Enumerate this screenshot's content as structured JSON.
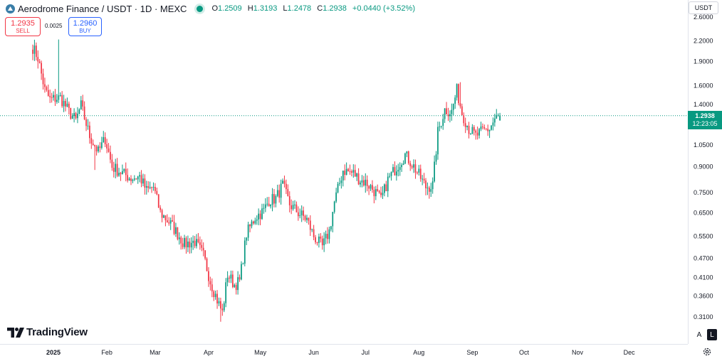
{
  "symbol": {
    "title": "Aerodrome Finance / USDT · 1D · MEXC",
    "ohlc": [
      {
        "key": "O",
        "value": "1.2509"
      },
      {
        "key": "H",
        "value": "1.3193"
      },
      {
        "key": "L",
        "value": "1.2478"
      },
      {
        "key": "C",
        "value": "1.2938"
      }
    ],
    "change": "+0.0440 (+3.52%)"
  },
  "trade": {
    "sell_price": "1.2935",
    "sell_label": "SELL",
    "buy_price": "1.2960",
    "buy_label": "BUY",
    "spread": "0.0025"
  },
  "currency": "USDT",
  "last_price": {
    "price": "1.2938",
    "countdown": "12:23:05",
    "value": 1.2938
  },
  "brand": "TradingView",
  "scale_buttons": {
    "auto": "A",
    "log": "L"
  },
  "colors": {
    "up": "#089981",
    "down": "#f23645",
    "buy": "#2962ff",
    "logo": "#3a7ea8",
    "text": "#131722",
    "axis_text": "#131722"
  },
  "chart_data": {
    "type": "candlestick",
    "title": "Aerodrome Finance / USDT · 1D · MEXC",
    "scale": "log",
    "y_ticks": [
      "2.6000",
      "2.2000",
      "1.9000",
      "1.6000",
      "1.4000",
      "1.0500",
      "0.9000",
      "0.7500",
      "0.6500",
      "0.5500",
      "0.4700",
      "0.4100",
      "0.3600",
      "0.3100"
    ],
    "ylim": [
      0.275,
      2.85
    ],
    "x_ticks": [
      {
        "label": "2025",
        "date": "2025-01-01",
        "bold": true
      },
      {
        "label": "Feb",
        "date": "2025-02-01"
      },
      {
        "label": "Mar",
        "date": "2025-03-01"
      },
      {
        "label": "Apr",
        "date": "2025-04-01"
      },
      {
        "label": "May",
        "date": "2025-05-01"
      },
      {
        "label": "Jun",
        "date": "2025-06-01"
      },
      {
        "label": "Jul",
        "date": "2025-07-01"
      },
      {
        "label": "Aug",
        "date": "2025-08-01"
      },
      {
        "label": "Sep",
        "date": "2025-09-01"
      },
      {
        "label": "Oct",
        "date": "2025-10-01"
      },
      {
        "label": "Nov",
        "date": "2025-11-01"
      },
      {
        "label": "Dec",
        "date": "2025-12-01"
      }
    ],
    "x_range": [
      "2024-12-01",
      "2026-01-04"
    ],
    "series_start": "2024-12-20",
    "close_anchors": [
      [
        "2024-12-20",
        2.1
      ],
      [
        "2024-12-23",
        1.95
      ],
      [
        "2024-12-27",
        1.55
      ],
      [
        "2024-12-30",
        1.45
      ],
      [
        "2025-01-05",
        1.47
      ],
      [
        "2025-01-10",
        1.33
      ],
      [
        "2025-01-14",
        1.25
      ],
      [
        "2025-01-17",
        1.39
      ],
      [
        "2025-01-22",
        1.12
      ],
      [
        "2025-01-27",
        1.0
      ],
      [
        "2025-01-31",
        1.1
      ],
      [
        "2025-02-04",
        0.9
      ],
      [
        "2025-02-10",
        0.86
      ],
      [
        "2025-02-15",
        0.83
      ],
      [
        "2025-02-20",
        0.84
      ],
      [
        "2025-02-24",
        0.76
      ],
      [
        "2025-02-28",
        0.78
      ],
      [
        "2025-03-04",
        0.65
      ],
      [
        "2025-03-10",
        0.6
      ],
      [
        "2025-03-14",
        0.56
      ],
      [
        "2025-03-18",
        0.52
      ],
      [
        "2025-03-24",
        0.53
      ],
      [
        "2025-03-29",
        0.48
      ],
      [
        "2025-04-02",
        0.4
      ],
      [
        "2025-04-06",
        0.35
      ],
      [
        "2025-04-09",
        0.32
      ],
      [
        "2025-04-12",
        0.42
      ],
      [
        "2025-04-16",
        0.39
      ],
      [
        "2025-04-19",
        0.4
      ],
      [
        "2025-04-23",
        0.56
      ],
      [
        "2025-04-28",
        0.63
      ],
      [
        "2025-05-03",
        0.66
      ],
      [
        "2025-05-06",
        0.71
      ],
      [
        "2025-05-10",
        0.72
      ],
      [
        "2025-05-14",
        0.79
      ],
      [
        "2025-05-18",
        0.69
      ],
      [
        "2025-05-23",
        0.65
      ],
      [
        "2025-05-28",
        0.62
      ],
      [
        "2025-06-01",
        0.55
      ],
      [
        "2025-06-06",
        0.51
      ],
      [
        "2025-06-10",
        0.57
      ],
      [
        "2025-06-13",
        0.7
      ],
      [
        "2025-06-18",
        0.88
      ],
      [
        "2025-06-24",
        0.86
      ],
      [
        "2025-06-28",
        0.82
      ],
      [
        "2025-07-02",
        0.8
      ],
      [
        "2025-07-07",
        0.75
      ],
      [
        "2025-07-10",
        0.71
      ],
      [
        "2025-07-14",
        0.82
      ],
      [
        "2025-07-19",
        0.9
      ],
      [
        "2025-07-24",
        0.98
      ],
      [
        "2025-07-28",
        0.92
      ],
      [
        "2025-08-01",
        0.85
      ],
      [
        "2025-08-05",
        0.78
      ],
      [
        "2025-08-09",
        0.79
      ],
      [
        "2025-08-12",
        1.15
      ],
      [
        "2025-08-16",
        1.35
      ],
      [
        "2025-08-20",
        1.33
      ],
      [
        "2025-08-23",
        1.55
      ],
      [
        "2025-08-26",
        1.32
      ],
      [
        "2025-08-30",
        1.18
      ],
      [
        "2025-09-03",
        1.12
      ],
      [
        "2025-09-07",
        1.16
      ],
      [
        "2025-09-11",
        1.18
      ],
      [
        "2025-09-14",
        1.26
      ],
      [
        "2025-09-17",
        1.29
      ]
    ],
    "wick_spikes": [
      {
        "date": "2025-01-04",
        "high": 2.22
      },
      {
        "date": "2025-01-25",
        "low": 0.88
      },
      {
        "date": "2025-04-08",
        "low": 0.3
      },
      {
        "date": "2025-08-25",
        "high": 1.64
      },
      {
        "date": "2025-09-17",
        "high": 1.3193,
        "low": 1.2478
      }
    ],
    "last_candle": {
      "date": "2025-09-17",
      "open": 1.2509,
      "high": 1.3193,
      "low": 1.2478,
      "close": 1.2938
    }
  }
}
